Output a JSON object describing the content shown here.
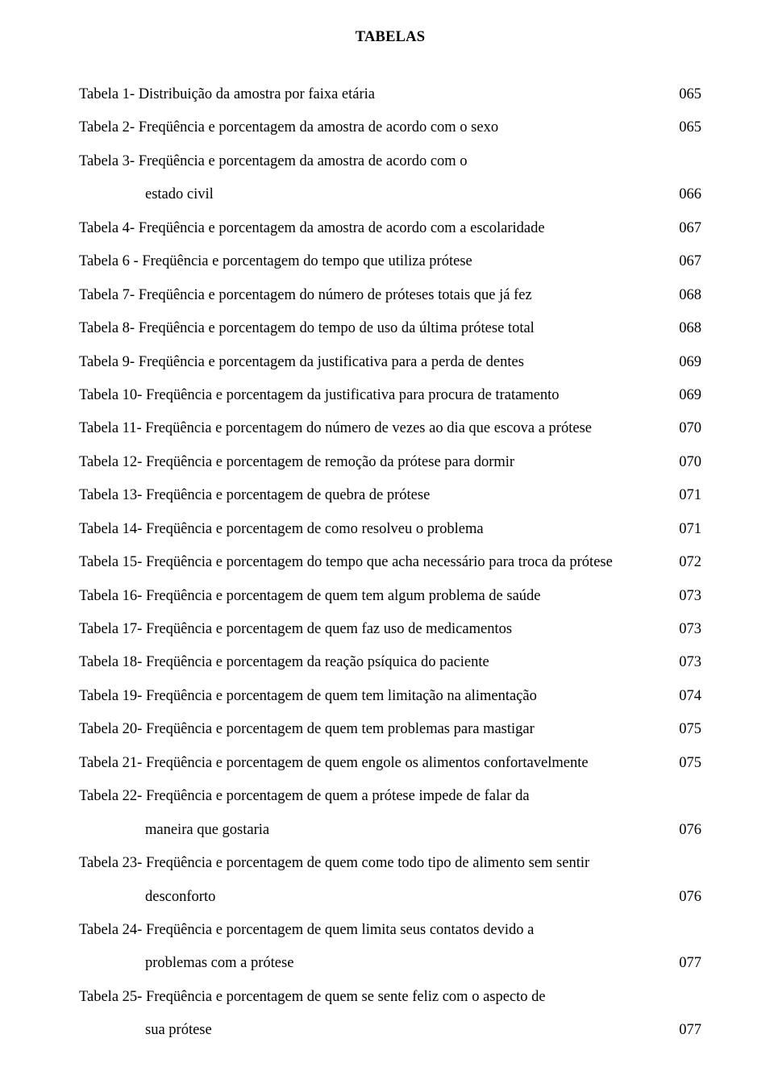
{
  "title": "TABELAS",
  "font_family": "Times New Roman",
  "text_color": "#000000",
  "background_color": "#ffffff",
  "base_fontsize_pt": 14,
  "rows": [
    {
      "prefix": "Tabela 1-",
      "desc": "Distribuição da amostra por faixa etária",
      "page": "065"
    },
    {
      "prefix": "Tabela 2-",
      "desc": "Freqüência e porcentagem da amostra de acordo com o sexo",
      "page": "065"
    },
    {
      "prefix": "Tabela 3-",
      "desc": "Freqüência e porcentagem da amostra de acordo com o",
      "page": ""
    },
    {
      "prefix": "",
      "cont": true,
      "desc": "estado civil",
      "page": "066"
    },
    {
      "prefix": "Tabela 4-",
      "desc": " Freqüência e porcentagem da amostra de acordo com a escolaridade",
      "page": "067"
    },
    {
      "prefix": "Tabela 6 -",
      "desc": "Freqüência e porcentagem do tempo que utiliza prótese",
      "page": "067"
    },
    {
      "prefix": "Tabela 7-",
      "desc": "Freqüência e porcentagem do número de próteses totais que já fez",
      "page": "068"
    },
    {
      "prefix": "Tabela 8-",
      "desc": "Freqüência e porcentagem do tempo de uso da última prótese total",
      "page": "068"
    },
    {
      "prefix": "Tabela 9-",
      "desc": "Freqüência e porcentagem da justificativa para a perda de dentes",
      "page": "069"
    },
    {
      "prefix": "Tabela 10-",
      "desc": "Freqüência e porcentagem  da justificativa para  procura de tratamento",
      "page": "069"
    },
    {
      "prefix": "Tabela 11-",
      "desc": "Freqüência e porcentagem do número de vezes ao dia que escova a prótese",
      "page": "070"
    },
    {
      "prefix": "Tabela 12-",
      "desc": "Freqüência e porcentagem de remoção da prótese para dormir",
      "page": "070"
    },
    {
      "prefix": "Tabela 13-",
      "desc": "Freqüência e porcentagem  de quebra de prótese",
      "page": "071"
    },
    {
      "prefix": "Tabela 14-",
      "desc": "Freqüência e porcentagem de como resolveu o problema",
      "page": "071"
    },
    {
      "prefix": "Tabela 15-",
      "desc": "Freqüência e porcentagem do tempo que acha necessário para troca da prótese",
      "page": "072"
    },
    {
      "prefix": "Tabela 16-",
      "desc": "Freqüência e porcentagem de quem tem algum problema de saúde",
      "page": "073"
    },
    {
      "prefix": "Tabela 17-",
      "desc": "Freqüência e porcentagem de quem faz uso de medicamentos",
      "page": "073"
    },
    {
      "prefix": "Tabela 18-",
      "desc": "Freqüência e porcentagem da reação psíquica do paciente",
      "page": "073"
    },
    {
      "prefix": "Tabela 19-",
      "desc": "Freqüência e porcentagem de quem tem limitação na alimentação",
      "page": "074"
    },
    {
      "prefix": "Tabela 20-",
      "desc": "Freqüência e porcentagem de quem tem problemas para mastigar",
      "page": "075"
    },
    {
      "prefix": "Tabela 21-",
      "desc": "Freqüência e porcentagem de quem engole os alimentos confortavelmente",
      "page": "075"
    },
    {
      "prefix": "Tabela 22-",
      "desc": "Freqüência e porcentagem de quem a prótese impede de falar da",
      "page": ""
    },
    {
      "prefix": "",
      "cont": true,
      "desc": " maneira que gostaria",
      "page": "076"
    },
    {
      "prefix": "Tabela 23-",
      "desc": "Freqüência e porcentagem de quem come todo tipo de alimento sem sentir",
      "page": ""
    },
    {
      "prefix": "",
      "cont": true,
      "desc": "desconforto",
      "page": "076"
    },
    {
      "prefix": "Tabela 24-",
      "desc": "Freqüência e porcentagem de quem limita seus contatos devido a",
      "page": ""
    },
    {
      "prefix": "",
      "cont": true,
      "desc": " problemas com a prótese",
      "page": "077"
    },
    {
      "prefix": "Tabela 25-",
      "desc": "Freqüência e porcentagem de quem se sente feliz com o aspecto de",
      "page": ""
    },
    {
      "prefix": "",
      "cont": true,
      "desc": "sua prótese",
      "page": "077"
    }
  ]
}
